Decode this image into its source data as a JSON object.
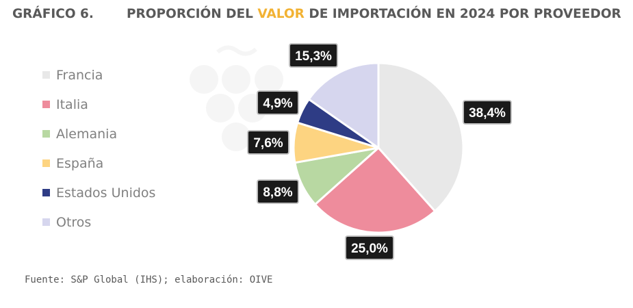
{
  "header": {
    "figure_number": "GRÁFICO 6.",
    "title_before": "PROPORCIÓN DEL ",
    "title_highlight": "VALOR",
    "title_after": " DE IMPORTACIÓN EN 2024 POR PROVEEDOR"
  },
  "chart_data": {
    "type": "pie",
    "title": "PROPORCIÓN DEL VALOR DE IMPORTACIÓN EN 2024 POR PROVEEDOR",
    "categories": [
      "Francia",
      "Italia",
      "Alemania",
      "España",
      "Estados Unidos",
      "Otros"
    ],
    "values": [
      38.4,
      25.0,
      8.8,
      7.6,
      4.9,
      15.3
    ],
    "labels": [
      "38,4%",
      "25,0%",
      "8,8%",
      "7,6%",
      "4,9%",
      "15,3%"
    ],
    "colors": [
      "#E8E8E8",
      "#EE8C9C",
      "#B8D8A2",
      "#FDD481",
      "#2E3C85",
      "#D6D6EE"
    ],
    "legend_position": "left",
    "unit": "%"
  },
  "source": "Fuente: S&P Global (IHS); elaboración: OIVE"
}
